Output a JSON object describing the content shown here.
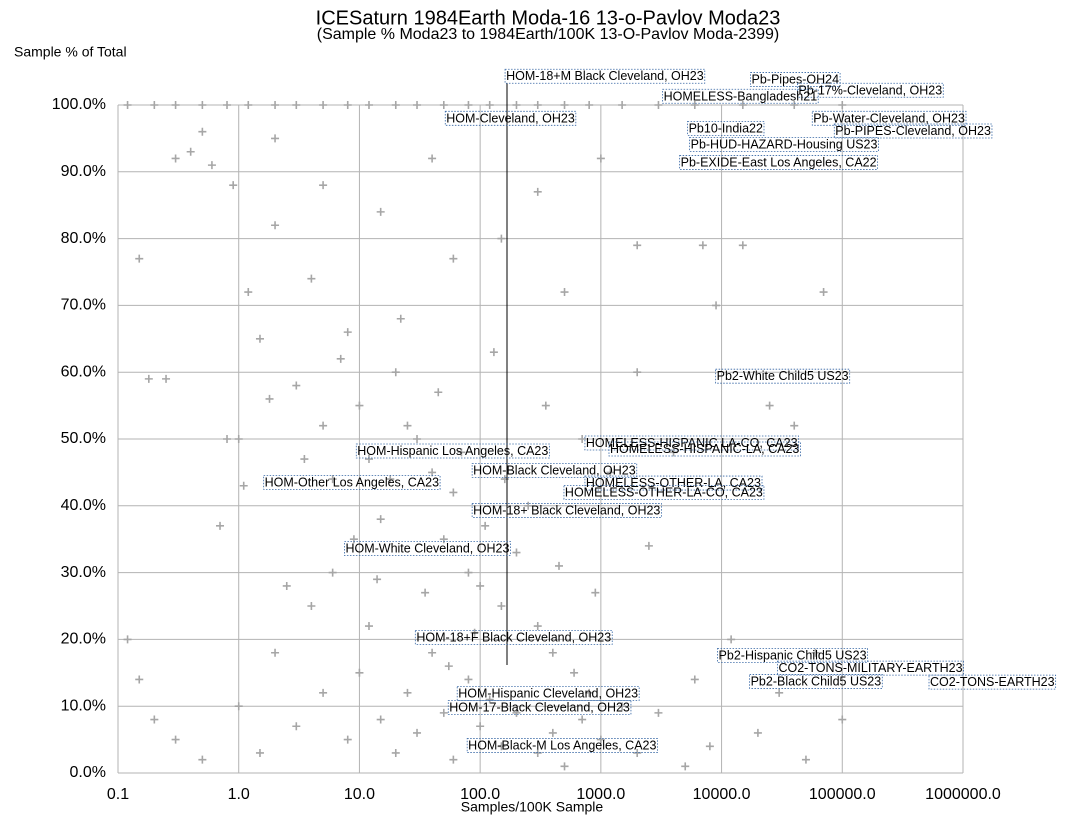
{
  "chart_data": {
    "type": "scatter",
    "title": "ICESaturn 1984Earth Moda-16 13-o-Pavlov Moda23",
    "subtitle": "(Sample % Moda23 to 1984Earth/100K 13-O-Pavlov Moda-2399)",
    "y_label": "Sample % of Total",
    "x_label": "Samples/100K Sample",
    "x_scale": "log",
    "grid": true,
    "xlim": [
      0.1,
      1000000
    ],
    "ylim": [
      0,
      100
    ],
    "xticks": [
      {
        "value": 0.1,
        "label": "0.1"
      },
      {
        "value": 1,
        "label": "1.0"
      },
      {
        "value": 10,
        "label": "10.0"
      },
      {
        "value": 100,
        "label": "100.0"
      },
      {
        "value": 1000,
        "label": "1000.0"
      },
      {
        "value": 10000,
        "label": "10000.0"
      },
      {
        "value": 100000,
        "label": "100000.0"
      },
      {
        "value": 1000000,
        "label": "1000000.0"
      }
    ],
    "yticks": [
      {
        "value": 0,
        "label": "0.0%"
      },
      {
        "value": 10,
        "label": "10.0%"
      },
      {
        "value": 20,
        "label": "20.0%"
      },
      {
        "value": 30,
        "label": "30.0%"
      },
      {
        "value": 40,
        "label": "40.0%"
      },
      {
        "value": 50,
        "label": "50.0%"
      },
      {
        "value": 60,
        "label": "60.0%"
      },
      {
        "value": 70,
        "label": "70.0%"
      },
      {
        "value": 80,
        "label": "80.0%"
      },
      {
        "value": 90,
        "label": "90.0%"
      },
      {
        "value": 100,
        "label": "100.0%"
      }
    ],
    "series": [
      {
        "color": "#a6a6a6",
        "x": [
          0.12,
          0.2,
          0.3,
          0.5,
          0.8,
          1.2,
          2,
          3,
          5,
          8,
          12,
          20,
          30,
          50,
          80,
          120,
          200,
          300,
          500,
          800,
          1500,
          3000,
          6000,
          15000,
          40000,
          100000,
          0.15,
          0.18,
          0.25,
          0.3,
          0.4,
          0.5,
          0.6,
          0.9,
          0.8,
          1.0,
          1.2,
          1.5,
          2,
          3,
          4,
          5,
          6,
          8,
          10,
          12,
          15,
          20,
          25,
          30,
          40,
          50,
          60,
          80,
          100,
          150,
          200,
          300,
          400,
          600,
          800,
          1500,
          3000,
          6000,
          12000,
          30000,
          60000,
          100000,
          0.12,
          0.15,
          0.2,
          0.3,
          0.5,
          1,
          1.5,
          2,
          3,
          4,
          5,
          6,
          8,
          10,
          12,
          15,
          20,
          25,
          30,
          40,
          50,
          60,
          80,
          100,
          120,
          150,
          200,
          300,
          400,
          500,
          700,
          1000,
          2000,
          5000,
          20000,
          50000,
          8000,
          0.7,
          1.1,
          1.8,
          2.5,
          3.5,
          7,
          9,
          14,
          18,
          22,
          35,
          45,
          55,
          70,
          90,
          110,
          130,
          160,
          250,
          350,
          450,
          700,
          900,
          1200,
          2000,
          2500,
          4000,
          7000,
          9000,
          15000,
          25000,
          40000,
          70000,
          2,
          5,
          15,
          40,
          300,
          1000,
          2000,
          500,
          150,
          60
        ],
        "values": [
          100,
          100,
          100,
          100,
          100,
          100,
          100,
          100,
          100,
          100,
          100,
          100,
          100,
          100,
          100,
          100,
          100,
          100,
          100,
          100,
          100,
          100,
          100,
          100,
          100,
          100,
          77,
          59,
          59,
          92,
          93,
          96,
          91,
          88,
          50,
          50,
          72,
          65,
          82,
          58,
          74,
          52,
          44,
          66,
          55,
          47,
          38,
          60,
          52,
          50,
          45,
          35,
          42,
          30,
          28,
          25,
          33,
          22,
          18,
          15,
          12,
          10,
          9,
          14,
          20,
          12,
          18,
          8,
          20,
          14,
          8,
          5,
          2,
          10,
          3,
          18,
          7,
          25,
          12,
          30,
          5,
          15,
          22,
          8,
          3,
          12,
          6,
          18,
          9,
          2,
          14,
          7,
          11,
          4,
          9,
          3,
          6,
          1,
          8,
          5,
          3,
          1,
          6,
          2,
          4,
          37,
          43,
          56,
          28,
          47,
          62,
          35,
          29,
          44,
          68,
          27,
          57,
          16,
          48,
          21,
          37,
          63,
          44,
          40,
          55,
          31,
          50,
          27,
          45,
          60,
          34,
          48,
          79,
          70,
          79,
          55,
          52,
          72,
          95,
          88,
          84,
          92,
          87,
          92,
          79,
          72,
          80,
          77
        ]
      }
    ],
    "annotations": [
      {
        "text": "HOM-18+M Black Cleveland, OH23",
        "x": 164,
        "y": 104.2
      },
      {
        "text": "Pb-Pipes-OH24",
        "x": 17700,
        "y": 103.7
      },
      {
        "text": "Pb-17%-Cleveland, OH23",
        "x": 43300,
        "y": 102.1
      },
      {
        "text": "HOMELESS-Bangladesh21",
        "x": 3310,
        "y": 101.2
      },
      {
        "text": "HOM-Cleveland, OH23",
        "x": 52.4,
        "y": 97.9
      },
      {
        "text": "Pb-Water-Cleveland, OH23",
        "x": 57500,
        "y": 97.9
      },
      {
        "text": "Pb10-India22",
        "x": 5330,
        "y": 96.4
      },
      {
        "text": "Pb-PIPES-Cleveland, OH23",
        "x": 87500,
        "y": 96.0
      },
      {
        "text": "Pb-HUD-HAZARD-Housing US23",
        "x": 5540,
        "y": 94.0
      },
      {
        "text": "Pb-EXIDE-East Los Angeles, CA22",
        "x": 4580,
        "y": 91.3
      },
      {
        "text": "Pb2-White Child5 US23",
        "x": 9100,
        "y": 59.3
      },
      {
        "text": "HOMELESS-HISPANIC LA-CO, CA23",
        "x": 752,
        "y": 49.3
      },
      {
        "text": "HOMELESS-HISPANIC-LA, CA23",
        "x": 1190,
        "y": 48.4
      },
      {
        "text": "HOM-Hispanic Los Angeles, CA23",
        "x": 9.6,
        "y": 48.1
      },
      {
        "text": "HOM-Black Cleveland, OH23",
        "x": 87.5,
        "y": 45.2
      },
      {
        "text": "HOM-Other Los Angeles, CA23",
        "x": 1.64,
        "y": 43.4
      },
      {
        "text": "HOMELESS-OTHER-LA, CA23",
        "x": 752,
        "y": 43.3
      },
      {
        "text": "HOMELESS-OTHER-LA-CO, CA23",
        "x": 504,
        "y": 41.9
      },
      {
        "text": "HOM-18+ Black Cleveland, OH23",
        "x": 87.5,
        "y": 39.2
      },
      {
        "text": "HOM-White Cleveland, OH23",
        "x": 7.66,
        "y": 33.5
      },
      {
        "text": "HOM-18+F Black Cleveland, OH23",
        "x": 29.6,
        "y": 20.2
      },
      {
        "text": "Pb2-Hispanic Child5 US23",
        "x": 9440,
        "y": 17.5
      },
      {
        "text": "CO2-TONS-MILITARY-EARTH23",
        "x": 29600,
        "y": 15.6
      },
      {
        "text": "Pb2-Black Child5 US23",
        "x": 17400,
        "y": 13.6
      },
      {
        "text": "CO2-TONS-EARTH23",
        "x": 533000,
        "y": 13.5
      },
      {
        "text": "HOM-Hispanic Cleveland, OH23",
        "x": 65.8,
        "y": 11.8
      },
      {
        "text": "HOM-17-Black Cleveland, OH23",
        "x": 55.5,
        "y": 9.7
      },
      {
        "text": "HOM-Black-M  Los Angeles, CA23",
        "x": 79.6,
        "y": 4.0
      }
    ]
  }
}
